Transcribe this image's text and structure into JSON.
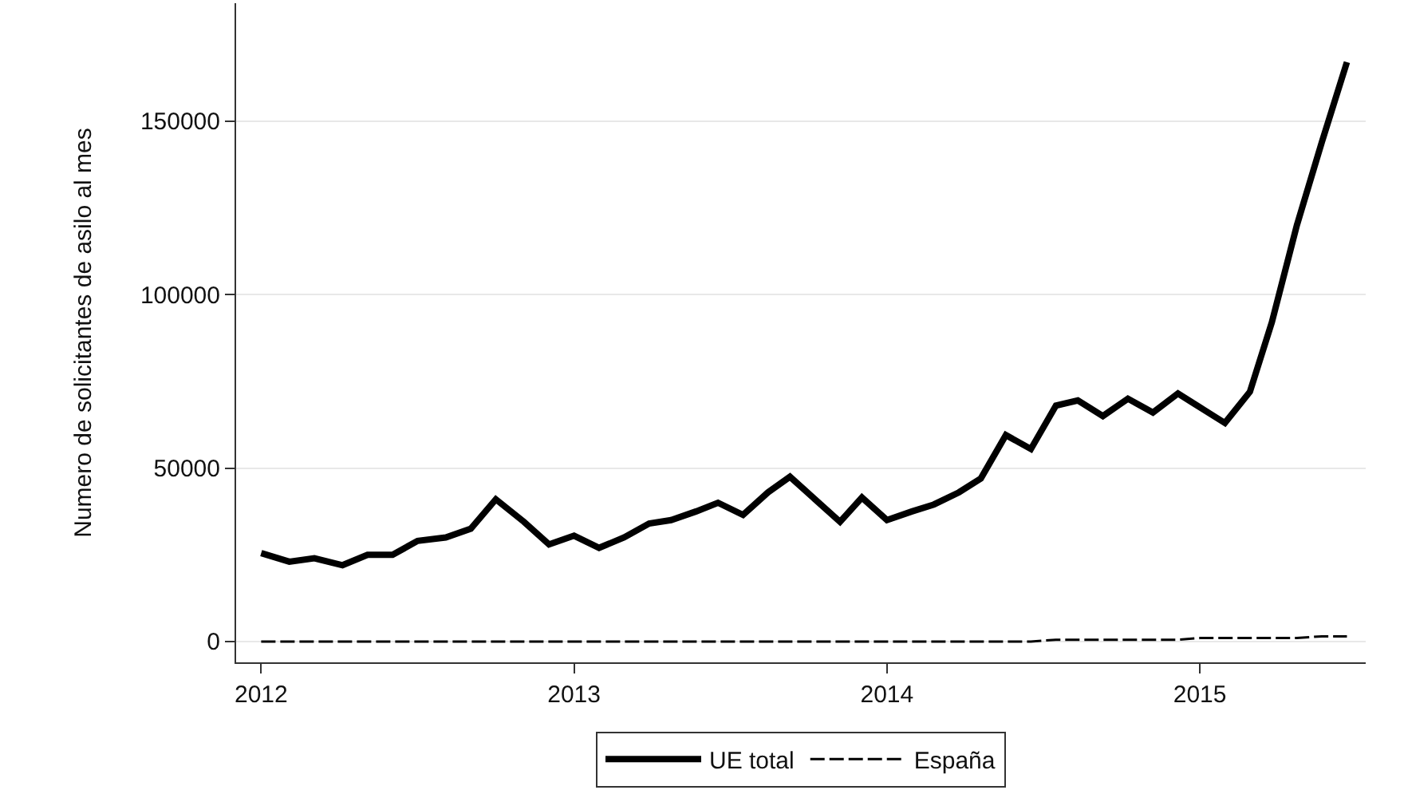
{
  "chart_data": {
    "type": "line",
    "ylabel": "Numero de solicitantes de asilo al mes",
    "x": [
      2012.0,
      2012.09,
      2012.17,
      2012.26,
      2012.34,
      2012.42,
      2012.5,
      2012.59,
      2012.67,
      2012.75,
      2012.84,
      2012.92,
      2013.0,
      2013.08,
      2013.16,
      2013.24,
      2013.31,
      2013.39,
      2013.46,
      2013.54,
      2013.62,
      2013.69,
      2013.77,
      2013.85,
      2013.92,
      2014.0,
      2014.08,
      2014.15,
      2014.23,
      2014.3,
      2014.38,
      2014.46,
      2014.54,
      2014.61,
      2014.69,
      2014.77,
      2014.85,
      2014.93,
      2015.0,
      2015.08,
      2015.16,
      2015.23,
      2015.31,
      2015.39,
      2015.47
    ],
    "series": [
      {
        "name": "UE total",
        "color": "#000000",
        "line_style": "solid",
        "values": [
          25500,
          23000,
          24000,
          22000,
          25000,
          25000,
          29000,
          30000,
          32500,
          41000,
          34500,
          28000,
          30500,
          27000,
          30000,
          34000,
          35000,
          37500,
          40000,
          36500,
          43000,
          47500,
          41000,
          34500,
          41500,
          35000,
          37500,
          39500,
          43000,
          47000,
          59500,
          55500,
          68000,
          69500,
          65000,
          70000,
          66000,
          71500,
          67500,
          63000,
          72000,
          92000,
          120000,
          144000,
          167000
        ]
      },
      {
        "name": "España",
        "color": "#000000",
        "line_style": "dashed",
        "values": [
          0,
          0,
          0,
          0,
          0,
          0,
          0,
          0,
          0,
          0,
          0,
          0,
          0,
          0,
          0,
          0,
          0,
          0,
          0,
          0,
          0,
          0,
          0,
          0,
          0,
          0,
          0,
          0,
          0,
          0,
          0,
          0,
          500,
          500,
          500,
          500,
          500,
          500,
          1000,
          1000,
          1000,
          1000,
          1000,
          1500,
          1500
        ]
      }
    ],
    "xlim": [
      2011.92,
      2015.53
    ],
    "xticks": [
      2012,
      2013,
      2014,
      2015
    ],
    "ylim": [
      -6000,
      184000
    ],
    "yticks": [
      0,
      50000,
      100000,
      150000
    ],
    "grid": "y",
    "legend": "bottom"
  }
}
